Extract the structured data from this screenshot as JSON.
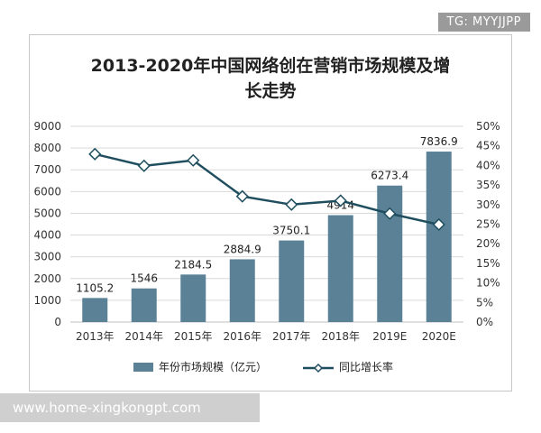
{
  "watermark_tag": "TG: MYYJJPP",
  "watermark_url": "www.home-xingkongpt.com",
  "chart_data": {
    "type": "bar",
    "title_line1": "2013-2020年中国网络创在营销市场规模及增",
    "title_line2": "长走势",
    "categories": [
      "2013年",
      "2014年",
      "2015年",
      "2016年",
      "2017年",
      "2018年",
      "2019E",
      "2020E"
    ],
    "series": [
      {
        "name": "年份市场规模（亿元）",
        "type": "bar",
        "axis": "left",
        "color": "#5b8197",
        "values": [
          1105.2,
          1546,
          2184.5,
          2884.9,
          3750.1,
          4914,
          6273.4,
          7836.9
        ],
        "labels": [
          "1105.2",
          "1546",
          "2184.5",
          "2884.9",
          "3750.1",
          "4914",
          "6273.4",
          "7836.9"
        ]
      },
      {
        "name": "同比增长率",
        "type": "line",
        "axis": "right",
        "color": "#1f4e5f",
        "values": [
          42.9,
          39.9,
          41.3,
          32.1,
          30.0,
          31.0,
          27.7,
          24.9
        ]
      }
    ],
    "y_left": {
      "min": 0,
      "max": 9000,
      "ticks": [
        "0",
        "1000",
        "2000",
        "3000",
        "4000",
        "5000",
        "6000",
        "7000",
        "8000",
        "9000"
      ]
    },
    "y_right": {
      "min": 0,
      "max": 50,
      "ticks": [
        "0%",
        "5%",
        "10%",
        "15%",
        "20%",
        "25%",
        "30%",
        "35%",
        "40%",
        "45%",
        "50%"
      ]
    },
    "grid": true,
    "legend_position": "bottom"
  }
}
